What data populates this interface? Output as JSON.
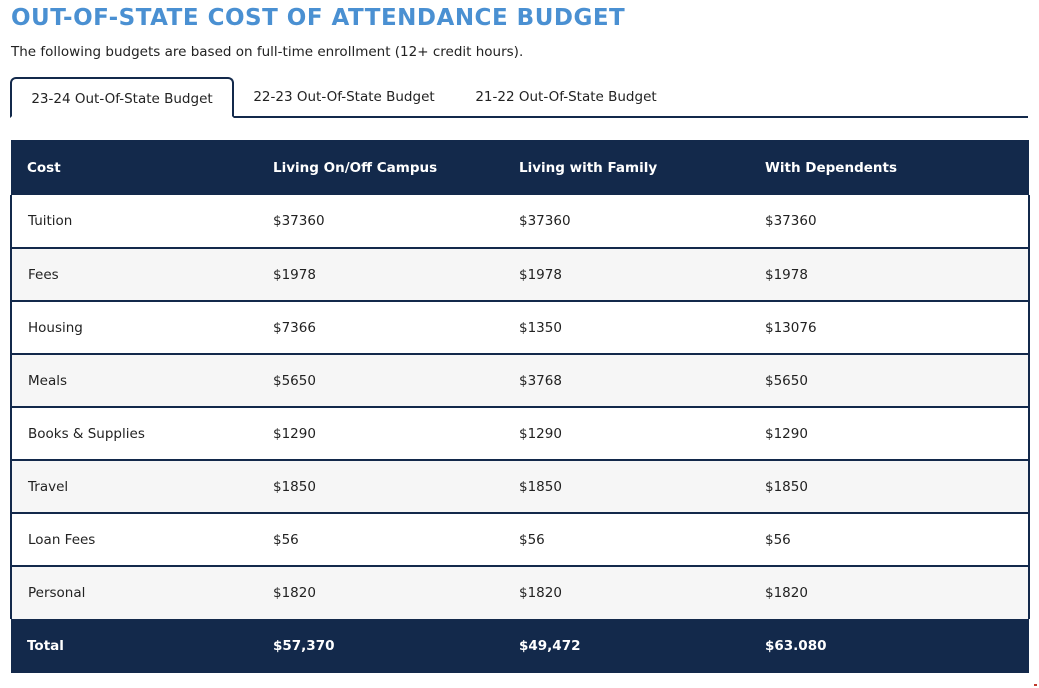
{
  "header": {
    "title": "OUT-OF-STATE COST OF ATTENDANCE BUDGET",
    "subtitle": "The following budgets are based on full-time enrollment (12+ credit hours)."
  },
  "tabs": [
    {
      "label": "23-24 Out-Of-State Budget",
      "active": true
    },
    {
      "label": "22-23 Out-Of-State Budget",
      "active": false
    },
    {
      "label": "21-22 Out-Of-State Budget",
      "active": false
    }
  ],
  "table": {
    "columns": [
      "Cost",
      "Living On/Off Campus",
      "Living with Family",
      "With Dependents"
    ],
    "rows": [
      [
        "Tuition",
        "$37360",
        "$37360",
        "$37360"
      ],
      [
        "Fees",
        "$1978",
        "$1978",
        "$1978"
      ],
      [
        "Housing",
        "$7366",
        "$1350",
        "$13076"
      ],
      [
        "Meals",
        "$5650",
        "$3768",
        "$5650"
      ],
      [
        "Books & Supplies",
        "$1290",
        "$1290",
        "$1290"
      ],
      [
        "Travel",
        "$1850",
        "$1850",
        "$1850"
      ],
      [
        "Loan Fees",
        "$56",
        "$56",
        "$56"
      ],
      [
        "Personal",
        "$1820",
        "$1820",
        "$1820"
      ]
    ],
    "total": [
      "Total",
      "$57,370",
      "$49,472",
      "$63.080"
    ]
  },
  "colors": {
    "title": "#4a90d2",
    "navy": "#13294b",
    "row_alt": "#f6f6f6"
  }
}
